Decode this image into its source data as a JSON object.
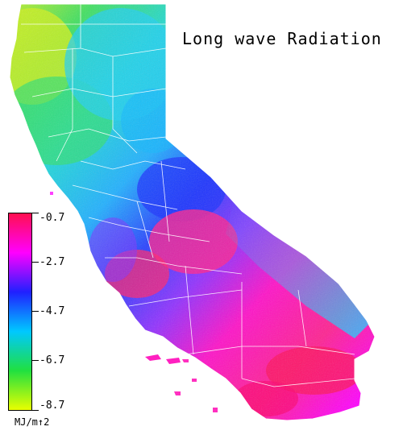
{
  "title": "Long wave Radiation",
  "legend": {
    "labels": [
      "-0.7",
      "-2.7",
      "-4.7",
      "-6.7",
      "-8.7"
    ],
    "unit": "MJ/m↑2",
    "max_value": -0.7,
    "min_value": -8.7,
    "colors": [
      "#ff1050",
      "#ff00ff",
      "#2020ff",
      "#00c8ff",
      "#20e040",
      "#e8ff00"
    ]
  }
}
